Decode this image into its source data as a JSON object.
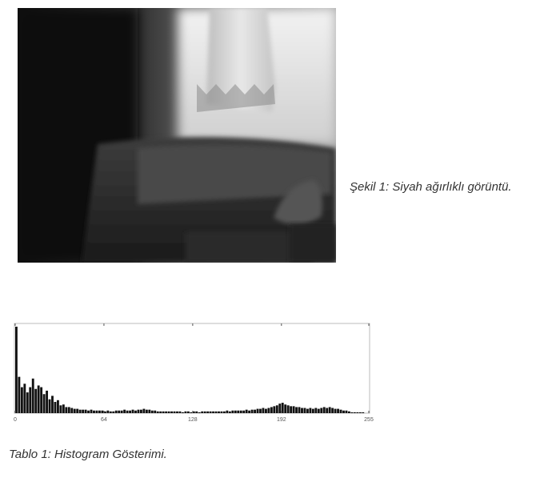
{
  "figure": {
    "caption": "Şekil 1: Siyah ağırlıklı görüntü.",
    "image_description_icon": "grayscale-photo"
  },
  "table": {
    "caption": "Tablo 1: Histogram Gösterimi."
  },
  "chart_data": {
    "type": "bar",
    "x_ticks": [
      "0",
      "64",
      "128",
      "192",
      "255"
    ],
    "xlim": [
      0,
      255
    ],
    "grid": false,
    "title": "",
    "xlabel": "",
    "ylabel": "",
    "colors": {
      "bars": "#111111",
      "frame": "#bbbbbb",
      "background": "#ffffff"
    },
    "bins": [
      {
        "x": 0,
        "v": 100
      },
      {
        "x": 2,
        "v": 42
      },
      {
        "x": 4,
        "v": 30
      },
      {
        "x": 6,
        "v": 34
      },
      {
        "x": 8,
        "v": 24
      },
      {
        "x": 10,
        "v": 30
      },
      {
        "x": 12,
        "v": 40
      },
      {
        "x": 14,
        "v": 28
      },
      {
        "x": 16,
        "v": 32
      },
      {
        "x": 18,
        "v": 30
      },
      {
        "x": 20,
        "v": 22
      },
      {
        "x": 22,
        "v": 26
      },
      {
        "x": 24,
        "v": 16
      },
      {
        "x": 26,
        "v": 20
      },
      {
        "x": 28,
        "v": 13
      },
      {
        "x": 30,
        "v": 15
      },
      {
        "x": 32,
        "v": 9
      },
      {
        "x": 34,
        "v": 10
      },
      {
        "x": 36,
        "v": 7
      },
      {
        "x": 38,
        "v": 7
      },
      {
        "x": 40,
        "v": 6
      },
      {
        "x": 42,
        "v": 5
      },
      {
        "x": 44,
        "v": 5
      },
      {
        "x": 46,
        "v": 4
      },
      {
        "x": 48,
        "v": 4
      },
      {
        "x": 50,
        "v": 4
      },
      {
        "x": 52,
        "v": 3
      },
      {
        "x": 54,
        "v": 4
      },
      {
        "x": 56,
        "v": 3
      },
      {
        "x": 58,
        "v": 3
      },
      {
        "x": 60,
        "v": 3
      },
      {
        "x": 62,
        "v": 3
      },
      {
        "x": 64,
        "v": 2
      },
      {
        "x": 66,
        "v": 3
      },
      {
        "x": 68,
        "v": 2
      },
      {
        "x": 70,
        "v": 2
      },
      {
        "x": 72,
        "v": 3
      },
      {
        "x": 74,
        "v": 3
      },
      {
        "x": 76,
        "v": 3
      },
      {
        "x": 78,
        "v": 4
      },
      {
        "x": 80,
        "v": 3
      },
      {
        "x": 82,
        "v": 3
      },
      {
        "x": 84,
        "v": 4
      },
      {
        "x": 86,
        "v": 3
      },
      {
        "x": 88,
        "v": 4
      },
      {
        "x": 90,
        "v": 4
      },
      {
        "x": 92,
        "v": 5
      },
      {
        "x": 94,
        "v": 4
      },
      {
        "x": 96,
        "v": 4
      },
      {
        "x": 98,
        "v": 3
      },
      {
        "x": 100,
        "v": 3
      },
      {
        "x": 102,
        "v": 2
      },
      {
        "x": 104,
        "v": 2
      },
      {
        "x": 106,
        "v": 2
      },
      {
        "x": 108,
        "v": 2
      },
      {
        "x": 110,
        "v": 2
      },
      {
        "x": 112,
        "v": 2
      },
      {
        "x": 114,
        "v": 2
      },
      {
        "x": 116,
        "v": 2
      },
      {
        "x": 118,
        "v": 2
      },
      {
        "x": 120,
        "v": 1
      },
      {
        "x": 122,
        "v": 2
      },
      {
        "x": 124,
        "v": 2
      },
      {
        "x": 126,
        "v": 1
      },
      {
        "x": 128,
        "v": 2
      },
      {
        "x": 130,
        "v": 2
      },
      {
        "x": 132,
        "v": 1
      },
      {
        "x": 134,
        "v": 2
      },
      {
        "x": 136,
        "v": 2
      },
      {
        "x": 138,
        "v": 2
      },
      {
        "x": 140,
        "v": 2
      },
      {
        "x": 142,
        "v": 2
      },
      {
        "x": 144,
        "v": 2
      },
      {
        "x": 146,
        "v": 2
      },
      {
        "x": 148,
        "v": 2
      },
      {
        "x": 150,
        "v": 2
      },
      {
        "x": 152,
        "v": 3
      },
      {
        "x": 154,
        "v": 2
      },
      {
        "x": 156,
        "v": 3
      },
      {
        "x": 158,
        "v": 3
      },
      {
        "x": 160,
        "v": 3
      },
      {
        "x": 162,
        "v": 3
      },
      {
        "x": 164,
        "v": 3
      },
      {
        "x": 166,
        "v": 4
      },
      {
        "x": 168,
        "v": 3
      },
      {
        "x": 170,
        "v": 4
      },
      {
        "x": 172,
        "v": 4
      },
      {
        "x": 174,
        "v": 5
      },
      {
        "x": 176,
        "v": 5
      },
      {
        "x": 178,
        "v": 6
      },
      {
        "x": 180,
        "v": 5
      },
      {
        "x": 182,
        "v": 6
      },
      {
        "x": 184,
        "v": 7
      },
      {
        "x": 186,
        "v": 8
      },
      {
        "x": 188,
        "v": 9
      },
      {
        "x": 190,
        "v": 11
      },
      {
        "x": 192,
        "v": 12
      },
      {
        "x": 194,
        "v": 10
      },
      {
        "x": 196,
        "v": 9
      },
      {
        "x": 198,
        "v": 8
      },
      {
        "x": 200,
        "v": 8
      },
      {
        "x": 202,
        "v": 7
      },
      {
        "x": 204,
        "v": 7
      },
      {
        "x": 206,
        "v": 6
      },
      {
        "x": 208,
        "v": 6
      },
      {
        "x": 210,
        "v": 5
      },
      {
        "x": 212,
        "v": 6
      },
      {
        "x": 214,
        "v": 5
      },
      {
        "x": 216,
        "v": 6
      },
      {
        "x": 218,
        "v": 5
      },
      {
        "x": 220,
        "v": 6
      },
      {
        "x": 222,
        "v": 7
      },
      {
        "x": 224,
        "v": 6
      },
      {
        "x": 226,
        "v": 7
      },
      {
        "x": 228,
        "v": 6
      },
      {
        "x": 230,
        "v": 5
      },
      {
        "x": 232,
        "v": 5
      },
      {
        "x": 234,
        "v": 4
      },
      {
        "x": 236,
        "v": 3
      },
      {
        "x": 238,
        "v": 3
      },
      {
        "x": 240,
        "v": 2
      },
      {
        "x": 242,
        "v": 1
      },
      {
        "x": 244,
        "v": 1
      },
      {
        "x": 246,
        "v": 1
      },
      {
        "x": 248,
        "v": 1
      },
      {
        "x": 250,
        "v": 1
      },
      {
        "x": 252,
        "v": 0
      },
      {
        "x": 254,
        "v": 0
      }
    ]
  }
}
